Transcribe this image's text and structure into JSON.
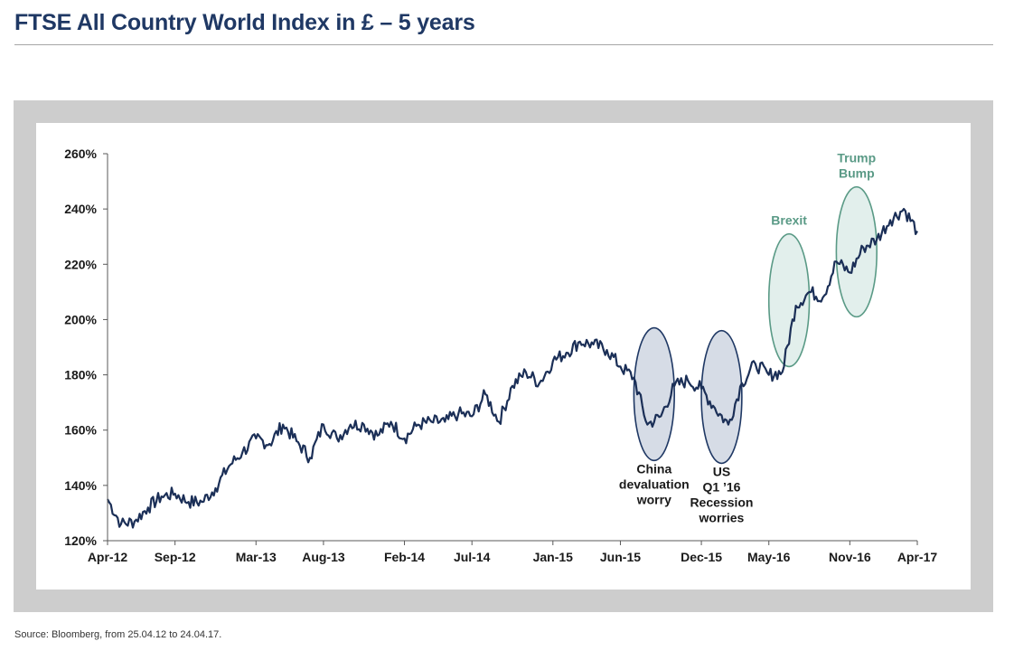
{
  "title": "FTSE All Country World Index in £ – 5 years",
  "source": "Source: Bloomberg, from 25.04.12 to 24.04.17.",
  "colors": {
    "title": "#1f3864",
    "line": "#1b2f57",
    "blue_highlight_fill": "#d6dce6",
    "blue_highlight_stroke": "#1f3864",
    "green_highlight_fill": "#e2efec",
    "green_highlight_stroke": "#5a9a86",
    "green_label": "#5a9a86",
    "frame": "#cdcdcd"
  },
  "chart_data": {
    "type": "line",
    "title": "FTSE All Country World Index in £ – 5 years",
    "xlabel": "",
    "ylabel": "",
    "ylim": [
      120,
      260
    ],
    "xlim": [
      "2012-04",
      "2017-04"
    ],
    "grid": false,
    "y_ticks": [
      "120%",
      "140%",
      "160%",
      "180%",
      "200%",
      "220%",
      "240%",
      "260%"
    ],
    "y_tick_values": [
      120,
      140,
      160,
      180,
      200,
      220,
      240,
      260
    ],
    "x_ticks": [
      "Apr-12",
      "Sep-12",
      "Mar-13",
      "Aug-13",
      "Feb-14",
      "Jul-14",
      "Jan-15",
      "Jun-15",
      "Dec-15",
      "May-16",
      "Nov-16",
      "Apr-17"
    ],
    "x_tick_values": [
      "2012-04",
      "2012-09",
      "2013-03",
      "2013-08",
      "2014-02",
      "2014-07",
      "2015-01",
      "2015-06",
      "2015-12",
      "2016-05",
      "2016-11",
      "2017-04"
    ],
    "series": [
      {
        "x": [
          "2012-04",
          "2012-05",
          "2012-06",
          "2012-07",
          "2012-08",
          "2012-09",
          "2012-10",
          "2012-11",
          "2012-12",
          "2013-01",
          "2013-02",
          "2013-03",
          "2013-04",
          "2013-05",
          "2013-06",
          "2013-07",
          "2013-08",
          "2013-09",
          "2013-10",
          "2013-11",
          "2013-12",
          "2014-01",
          "2014-02",
          "2014-03",
          "2014-04",
          "2014-05",
          "2014-06",
          "2014-07",
          "2014-08",
          "2014-09",
          "2014-10",
          "2014-11",
          "2014-12",
          "2015-01",
          "2015-02",
          "2015-03",
          "2015-04",
          "2015-05",
          "2015-06",
          "2015-07",
          "2015-08",
          "2015-09",
          "2015-10",
          "2015-11",
          "2015-12",
          "2016-01",
          "2016-02",
          "2016-03",
          "2016-04",
          "2016-05",
          "2016-06",
          "2016-07",
          "2016-08",
          "2016-09",
          "2016-10",
          "2016-11",
          "2016-12",
          "2017-01",
          "2017-02",
          "2017-03",
          "2017-04"
        ],
        "values": [
          135,
          126,
          127,
          132,
          136,
          137,
          134,
          134,
          139,
          147,
          152,
          157,
          155,
          162,
          156,
          150,
          162,
          157,
          162,
          162,
          158,
          163,
          157,
          162,
          163,
          163,
          166,
          165,
          173,
          163,
          176,
          181,
          177,
          185,
          188,
          192,
          191,
          189,
          183,
          179,
          162,
          165,
          176,
          178,
          175,
          168,
          162,
          177,
          184,
          180,
          181,
          205,
          210,
          208,
          221,
          217,
          226,
          229,
          236,
          240,
          232
        ]
      }
    ],
    "annotations": [
      {
        "text": [
          "China",
          "devaluation",
          "worry"
        ],
        "x_range": [
          "2015-07",
          "2015-10"
        ],
        "y_range": [
          149,
          197
        ],
        "style": "blue"
      },
      {
        "text": [
          "US",
          "Q1 ’16",
          "Recession",
          "worries"
        ],
        "x_range": [
          "2015-12",
          "2016-03"
        ],
        "y_range": [
          148,
          196
        ],
        "style": "blue"
      },
      {
        "text": [
          "Brexit"
        ],
        "x_range": [
          "2016-05",
          "2016-08"
        ],
        "y_range": [
          183,
          231
        ],
        "style": "green"
      },
      {
        "text": [
          "Trump",
          "Bump"
        ],
        "x_range": [
          "2016-10",
          "2017-01"
        ],
        "y_range": [
          201,
          248
        ],
        "style": "green"
      }
    ]
  }
}
